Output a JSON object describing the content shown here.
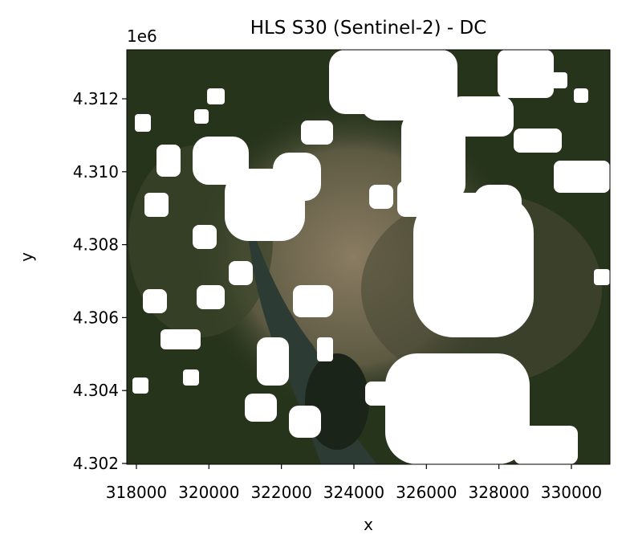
{
  "chart_data": {
    "type": "image",
    "title": "HLS S30 (Sentinel-2) - DC",
    "xlabel": "x",
    "ylabel": "y",
    "y_offset_label": "1e6",
    "xlim": [
      317735,
      331063
    ],
    "ylim": [
      4301978,
      4313344
    ],
    "xticks": [
      318000,
      320000,
      322000,
      324000,
      326000,
      328000,
      330000
    ],
    "yticks": [
      {
        "value": 4302000,
        "label": "4.302"
      },
      {
        "value": 4304000,
        "label": "4.304"
      },
      {
        "value": 4306000,
        "label": "4.306"
      },
      {
        "value": 4308000,
        "label": "4.308"
      },
      {
        "value": 4310000,
        "label": "4.310"
      },
      {
        "value": 4312000,
        "label": "4.312"
      }
    ]
  }
}
